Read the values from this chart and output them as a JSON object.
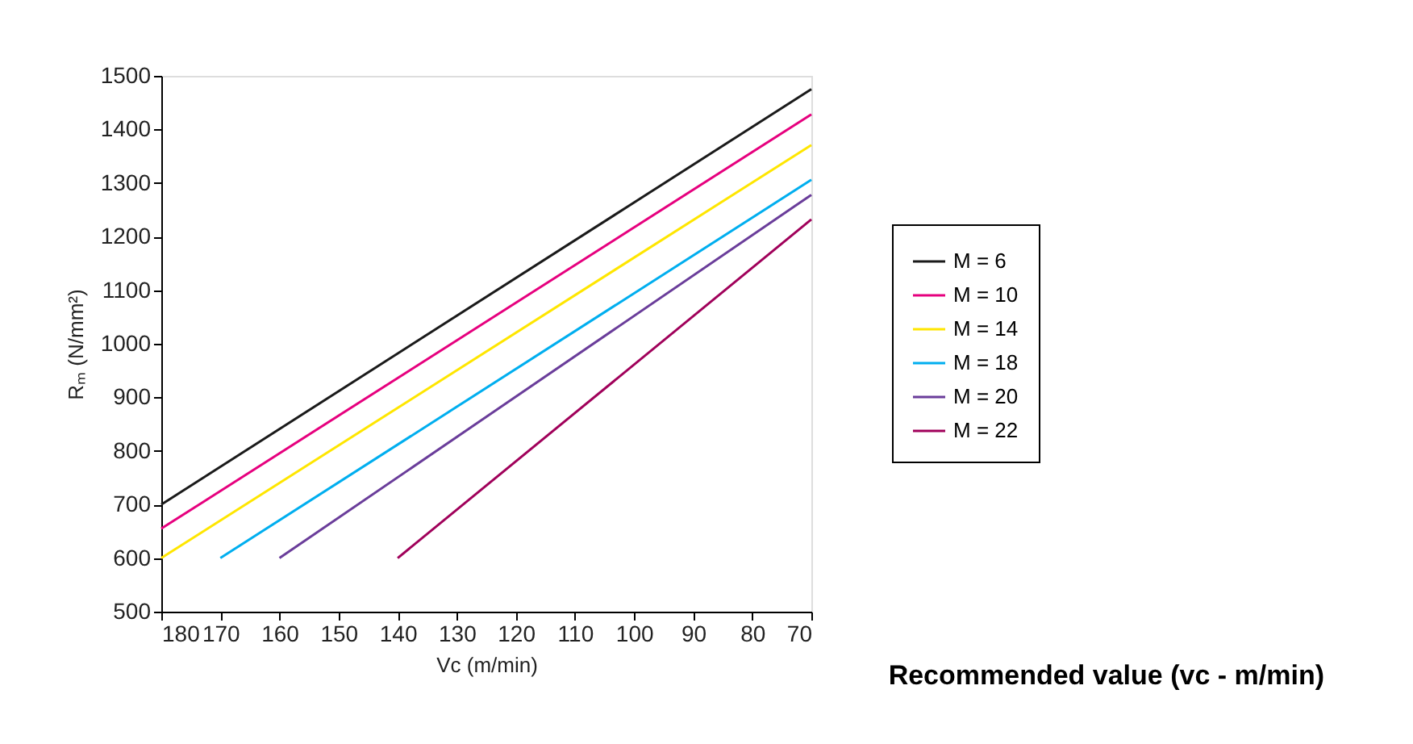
{
  "chart_data": {
    "type": "line",
    "xlabel": "Vc (m/min)",
    "ylabel": "Rₘ (N/mm²)",
    "xlim": [
      180,
      70
    ],
    "xticks": [
      180,
      170,
      160,
      150,
      140,
      130,
      120,
      110,
      100,
      90,
      80,
      70
    ],
    "ylim": [
      500,
      1500
    ],
    "yticks": [
      500,
      600,
      700,
      800,
      900,
      1000,
      1100,
      1200,
      1300,
      1400,
      1500
    ],
    "grid": false,
    "legend": "right",
    "marker": "none",
    "line_style": "solid",
    "annotations": [
      "Recommended value (vc - m/min)"
    ],
    "series": [
      {
        "name": "M = 6",
        "color": "#1a1a1a",
        "x": [
          180,
          70
        ],
        "values": [
          700,
          1475
        ]
      },
      {
        "name": "M = 10",
        "color": "#e6007e",
        "x": [
          180,
          70
        ],
        "values": [
          655,
          1428
        ]
      },
      {
        "name": "M = 14",
        "color": "#ffe600",
        "x": [
          180,
          70
        ],
        "values": [
          600,
          1371
        ]
      },
      {
        "name": "M = 18",
        "color": "#00aeef",
        "x": [
          170,
          70
        ],
        "values": [
          600,
          1306
        ]
      },
      {
        "name": "M = 20",
        "color": "#6a3d9a",
        "x": [
          160,
          70
        ],
        "values": [
          600,
          1278
        ]
      },
      {
        "name": "M = 22",
        "color": "#a0005a",
        "x": [
          140,
          70
        ],
        "values": [
          600,
          1232
        ]
      }
    ]
  }
}
